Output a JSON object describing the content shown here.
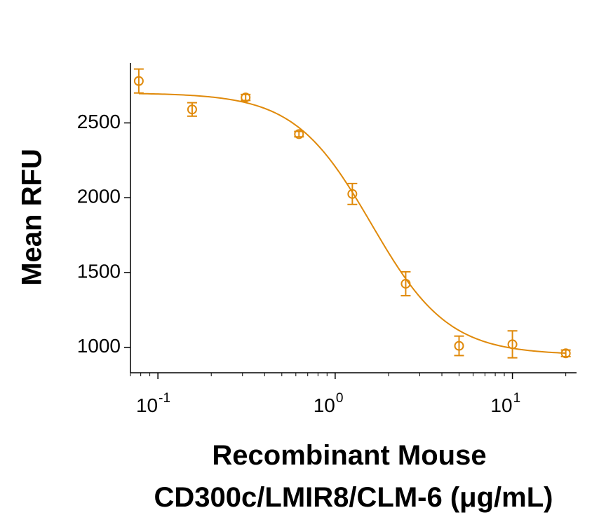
{
  "chart_data": {
    "type": "scatter",
    "xscale": "log",
    "xlim": [
      0.07,
      23
    ],
    "ylim": [
      830,
      2900
    ],
    "x_ticks": [
      {
        "value": 0.1,
        "base": "10",
        "exp": "-1"
      },
      {
        "value": 1,
        "base": "10",
        "exp": "0"
      },
      {
        "value": 10,
        "base": "10",
        "exp": "1"
      }
    ],
    "y_ticks": [
      {
        "value": 1000,
        "label": "1000"
      },
      {
        "value": 1500,
        "label": "1500"
      },
      {
        "value": 2000,
        "label": "2000"
      },
      {
        "value": 2500,
        "label": "2500"
      }
    ],
    "ylabel": "Mean RFU",
    "xlabel_line1": "Recombinant Mouse",
    "xlabel_line2": "CD300c/LMIR8/CLM-6 (μg/mL)",
    "color": "#E08A0B",
    "points": [
      {
        "x": 0.078,
        "y": 2780,
        "err": 80
      },
      {
        "x": 0.156,
        "y": 2590,
        "err": 45
      },
      {
        "x": 0.3125,
        "y": 2670,
        "err": 20
      },
      {
        "x": 0.625,
        "y": 2425,
        "err": 18
      },
      {
        "x": 1.25,
        "y": 2025,
        "err": 70
      },
      {
        "x": 2.5,
        "y": 1425,
        "err": 80
      },
      {
        "x": 5,
        "y": 1010,
        "err": 65
      },
      {
        "x": 10,
        "y": 1020,
        "err": 90
      },
      {
        "x": 20,
        "y": 960,
        "err": 22
      }
    ],
    "fit": {
      "model": "4PL",
      "top": 2700,
      "bottom": 950,
      "ec50": 1.6,
      "hill": 2.0
    }
  }
}
